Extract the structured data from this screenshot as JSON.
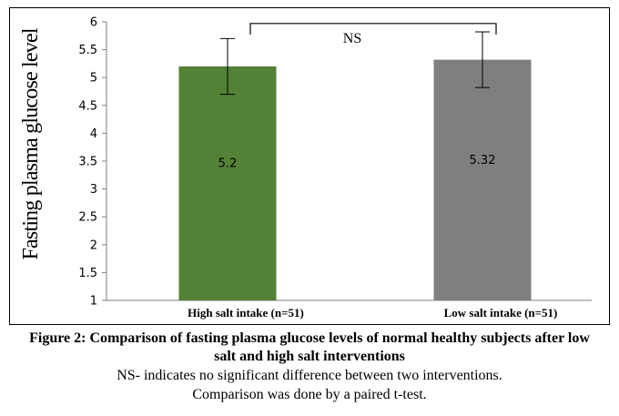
{
  "chart_data": {
    "type": "bar",
    "title": "",
    "xlabel": "",
    "ylabel": "Fasting plasma glucose level",
    "ylim": [
      1,
      6
    ],
    "yticks": [
      "1",
      "1.5",
      "2",
      "2.5",
      "3",
      "3.5",
      "4",
      "4.5",
      "5",
      "5.5",
      "6"
    ],
    "categories": [
      "High salt intake  (n=51)",
      "Low salt intake (n=51)"
    ],
    "values": [
      5.2,
      5.32
    ],
    "data_labels": [
      "5.2",
      "5.32"
    ],
    "error_bars": [
      {
        "low": 4.7,
        "high": 5.7
      },
      {
        "low": 4.82,
        "high": 5.82
      }
    ],
    "colors": [
      "#538135",
      "#7f7f7f"
    ],
    "grid": false,
    "annotation": "NS"
  },
  "caption": {
    "title": "Figure 2: Comparison of fasting plasma glucose levels of normal healthy subjects after low salt and high salt interventions",
    "note_1": "NS- indicates no significant difference between two interventions.",
    "note_2": "Comparison was done by a paired t-test."
  }
}
